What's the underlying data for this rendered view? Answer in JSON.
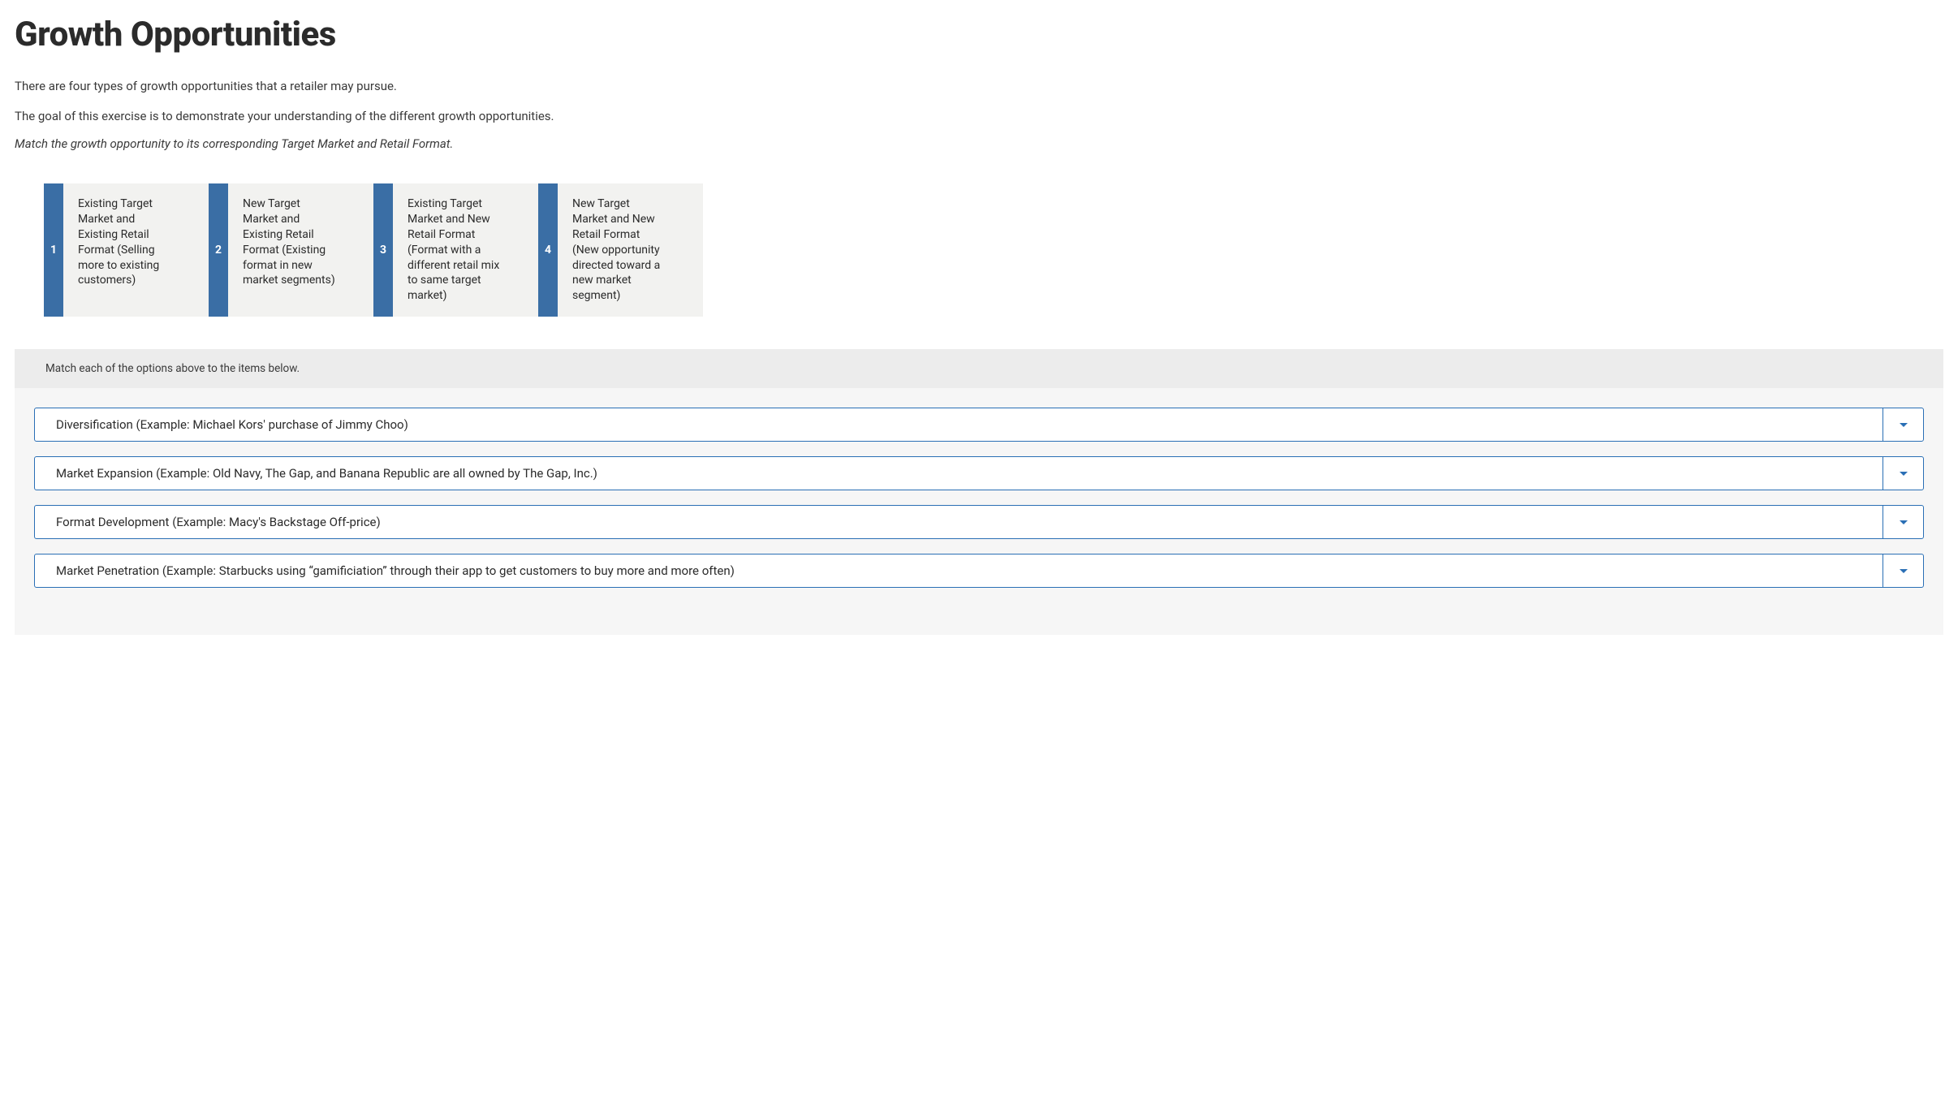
{
  "page": {
    "title": "Growth Opportunities",
    "intro_line_1": "There are four types of growth opportunities that a retailer may pursue.",
    "intro_line_2": "The goal of this exercise is to demonstrate your understanding of the different growth opportunities.",
    "instruction": "Match the growth opportunity to its corresponding Target Market and Retail Format."
  },
  "options": [
    {
      "number": "1",
      "text": "Existing Target Market and Existing Retail Format (Selling more to existing customers)"
    },
    {
      "number": "2",
      "text": "New Target Market and Existing Retail Format (Existing format in new market segments)"
    },
    {
      "number": "3",
      "text": "Existing Target Market and New Retail Format (Format with a different retail mix to same target market)"
    },
    {
      "number": "4",
      "text": "New Target Market and New Retail Format (New opportunity directed toward a new market segment)"
    }
  ],
  "match_section": {
    "header": "Match each of the options above to the items below.",
    "items": [
      {
        "text": "Diversification (Example: Michael Kors' purchase of Jimmy Choo)"
      },
      {
        "text": "Market Expansion (Example: Old Navy, The Gap, and Banana Republic are all owned by The Gap, Inc.)"
      },
      {
        "text": "Format Development (Example: Macy's Backstage Off-price)"
      },
      {
        "text": "Market Penetration (Example: Starbucks using “gamificiation” through their app to get customers to buy more and more often)"
      }
    ]
  },
  "colors": {
    "accent_blue": "#2a6fb5",
    "option_number_bg": "#3a6ea5",
    "option_card_bg": "#f2f2f0",
    "match_bg": "#f6f6f6",
    "match_header_bg": "#ececec",
    "text_dark": "#2b2b2b"
  }
}
